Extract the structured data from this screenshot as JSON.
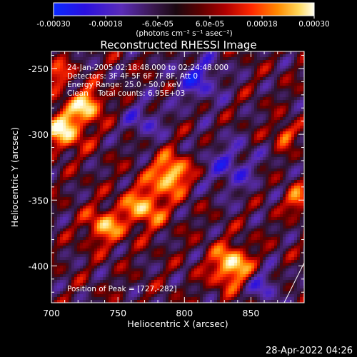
{
  "colorbar": {
    "tick_labels": [
      "-0.00030",
      "-0.00018",
      "-6.0e-05",
      "6.0e-05",
      "0.00018",
      "0.00030"
    ],
    "tick_values": [
      -0.0003,
      -0.00018,
      -6e-05,
      6e-05,
      0.00018,
      0.0003
    ],
    "range": [
      -0.0003,
      0.0003
    ],
    "units_label": "(photons cm⁻² s⁻¹ asec⁻²)"
  },
  "plot": {
    "title": "Reconstructed RHESSI Image",
    "xlabel": "Heliocentric X (arcsec)",
    "ylabel": "Heliocentric Y (arcsec)"
  },
  "annotations": {
    "time_range": "24-Jan-2005 02:18:48.000 to 02:24:48.000",
    "detectors": "Detectors: 3F 4F 5F 6F 7F 8F, Att 0",
    "energy_range": "Energy Range: 25.0 - 50.0 keV",
    "clean_counts": "Clean    Total counts: 6.95E+03",
    "peak": "Position of Peak = [727,-282]"
  },
  "footer": {
    "timestamp": "28-Apr-2022 04:26"
  },
  "chart_data": {
    "type": "heatmap",
    "title": "Reconstructed RHESSI Image",
    "xlabel": "Heliocentric X (arcsec)",
    "ylabel": "Heliocentric Y (arcsec)",
    "xlim": [
      700,
      890
    ],
    "ylim": [
      -428,
      -237
    ],
    "x_ticks": [
      700,
      750,
      800,
      850
    ],
    "y_ticks": [
      -250,
      -300,
      -350,
      -400
    ],
    "x_tick_labels": [
      "700",
      "750",
      "800",
      "850"
    ],
    "y_tick_labels": [
      "-250",
      "-300",
      "-350",
      "-400"
    ],
    "colorbar_range": [
      -0.0003,
      0.0003
    ],
    "peak_position": [
      727,
      -282
    ],
    "hot_spots": [
      {
        "x": 710,
        "y": -295,
        "level": 0.95,
        "r": 16
      },
      {
        "x": 728,
        "y": -277,
        "level": 0.92,
        "r": 11
      },
      {
        "x": 790,
        "y": -330,
        "level": 1.0,
        "r": 14
      },
      {
        "x": 835,
        "y": -400,
        "level": 1.0,
        "r": 15
      },
      {
        "x": 770,
        "y": -355,
        "level": 0.8,
        "r": 16
      },
      {
        "x": 740,
        "y": -370,
        "level": 0.75,
        "r": 14
      },
      {
        "x": 875,
        "y": -300,
        "level": 0.7,
        "r": 8
      },
      {
        "x": 885,
        "y": -350,
        "level": 0.7,
        "r": 9
      },
      {
        "x": 705,
        "y": -255,
        "level": 0.55,
        "r": 10
      }
    ],
    "cool_spots": [
      {
        "x": 810,
        "y": -258,
        "level": -0.6,
        "r": 18
      },
      {
        "x": 835,
        "y": -325,
        "level": -0.5,
        "r": 20
      },
      {
        "x": 860,
        "y": -415,
        "level": -0.55,
        "r": 12
      },
      {
        "x": 770,
        "y": -290,
        "level": -0.45,
        "r": 15
      }
    ]
  }
}
